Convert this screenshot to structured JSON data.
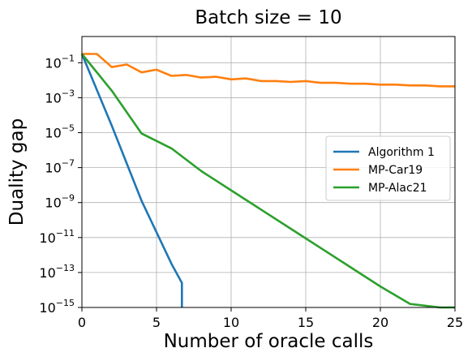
{
  "chart_data": {
    "type": "line",
    "title": "Batch size = 10",
    "xlabel": "Number of oracle calls",
    "ylabel": "Duality gap",
    "xlim": [
      0,
      25
    ],
    "ylim_log10": [
      -15,
      0.5
    ],
    "yscale": "log",
    "grid": true,
    "legend_position": "center-right",
    "x_ticks": [
      "0",
      "5",
      "10",
      "15",
      "20",
      "25"
    ],
    "y_ticks": [
      {
        "base": "10",
        "exp": "−1",
        "log10": -1
      },
      {
        "base": "10",
        "exp": "−3",
        "log10": -3
      },
      {
        "base": "10",
        "exp": "−5",
        "log10": -5
      },
      {
        "base": "10",
        "exp": "−7",
        "log10": -7
      },
      {
        "base": "10",
        "exp": "−9",
        "log10": -9
      },
      {
        "base": "10",
        "exp": "−11",
        "log10": -11
      },
      {
        "base": "10",
        "exp": "−13",
        "log10": -13
      },
      {
        "base": "10",
        "exp": "−15",
        "log10": -15
      }
    ],
    "series": [
      {
        "name": "Algorithm 1",
        "color": "#1f77b4",
        "x": [
          0,
          2,
          4,
          6,
          6.7,
          6.7
        ],
        "y_log10": [
          -0.5,
          -4.6,
          -8.9,
          -12.5,
          -13.6,
          -15
        ]
      },
      {
        "name": "MP-Car19",
        "color": "#ff7f0e",
        "x": [
          0,
          1,
          2,
          3,
          4,
          5,
          6,
          7,
          8,
          9,
          10,
          11,
          12,
          13,
          14,
          15,
          16,
          17,
          18,
          19,
          20,
          21,
          22,
          23,
          24,
          25
        ],
        "y_log10": [
          -0.5,
          -0.5,
          -1.25,
          -1.1,
          -1.55,
          -1.4,
          -1.75,
          -1.7,
          -1.85,
          -1.8,
          -1.95,
          -1.9,
          -2.05,
          -2.05,
          -2.1,
          -2.05,
          -2.15,
          -2.15,
          -2.2,
          -2.2,
          -2.25,
          -2.25,
          -2.3,
          -2.3,
          -2.35,
          -2.35
        ]
      },
      {
        "name": "MP-Alac21",
        "color": "#2ca02c",
        "x": [
          0,
          2,
          4,
          6,
          8,
          10,
          12,
          14,
          16,
          18,
          20,
          22,
          24,
          25
        ],
        "y_log10": [
          -0.5,
          -2.6,
          -5.05,
          -5.9,
          -7.2,
          -8.3,
          -9.4,
          -10.5,
          -11.6,
          -12.7,
          -13.8,
          -14.8,
          -15.0,
          -15.0
        ]
      }
    ]
  }
}
